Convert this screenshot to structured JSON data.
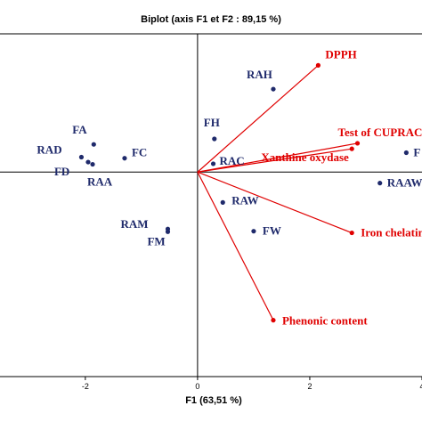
{
  "chart_data": {
    "type": "scatter",
    "title": "Biplot (axis F1 et F2 : 89,15 %)",
    "xlabel": "F1 (63,51 %)",
    "x_ticks": [
      -2,
      0,
      2,
      4
    ],
    "xlim": [
      -3.6,
      4.0
    ],
    "ylim": [
      -3.7,
      2.5
    ],
    "grid": false,
    "observations": [
      {
        "label": "RAH",
        "x": 1.35,
        "y": 1.5
      },
      {
        "label": "FH",
        "x": 0.3,
        "y": 0.6
      },
      {
        "label": "FA",
        "x": -1.85,
        "y": 0.5
      },
      {
        "label": "FC",
        "x": -1.3,
        "y": 0.25
      },
      {
        "label": "RAD",
        "x": -2.07,
        "y": 0.27
      },
      {
        "label": "FD",
        "x": -1.95,
        "y": 0.18
      },
      {
        "label": "RAA",
        "x": -1.87,
        "y": 0.14
      },
      {
        "label": "RAC",
        "x": 0.28,
        "y": 0.15
      },
      {
        "label": "RAW",
        "x": 0.45,
        "y": -0.55
      },
      {
        "label": "FW",
        "x": 1.0,
        "y": -1.07
      },
      {
        "label": "RAM",
        "x": -0.53,
        "y": -1.03
      },
      {
        "label": "FM",
        "x": -0.53,
        "y": -1.08
      },
      {
        "label": "RAAW",
        "x": 3.25,
        "y": -0.2
      },
      {
        "label": "F",
        "x": 3.72,
        "y": 0.35
      }
    ],
    "variables": [
      {
        "label": "DPPH",
        "x": 2.15,
        "y": 1.93
      },
      {
        "label": "Test of CUPRAC",
        "x": 2.85,
        "y": 0.52
      },
      {
        "label": "Xanthine oxydase",
        "x": 2.75,
        "y": 0.42
      },
      {
        "label": "Iron chelating",
        "x": 2.75,
        "y": -1.1
      },
      {
        "label": "Phenonic content",
        "x": 1.35,
        "y": -2.68
      }
    ]
  }
}
